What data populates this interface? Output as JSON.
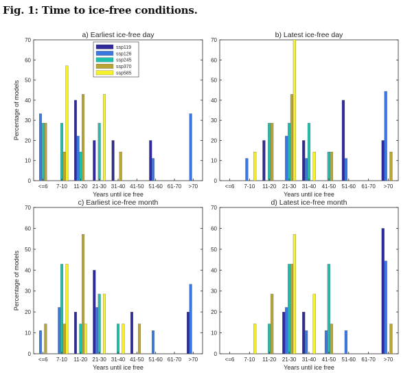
{
  "figure_title": "Fig. 1: Time to ice-free conditions.",
  "legend": [
    {
      "name": "ssp119",
      "color": "#2e2a9a"
    },
    {
      "name": "ssp126",
      "color": "#3a78e0"
    },
    {
      "name": "ssp245",
      "color": "#1fbfab"
    },
    {
      "name": "ssp370",
      "color": "#b9a533"
    },
    {
      "name": "ssp585",
      "color": "#f4f02e"
    }
  ],
  "chart_data": [
    {
      "type": "bar",
      "title": "a) Earliest ice-free day",
      "xlabel": "Years until ice free",
      "ylabel": "Percentage of models",
      "ylim": [
        0,
        70
      ],
      "yticks": [
        "0",
        "10",
        "20",
        "30",
        "40",
        "50",
        "60",
        "70"
      ],
      "categories": [
        "<=6",
        "7-10",
        "11-20",
        "21-30",
        "31-40",
        "41-50",
        "51-60",
        "61-70",
        ">70"
      ],
      "series": [
        {
          "name": "ssp119",
          "values": [
            0,
            0,
            40,
            20,
            20,
            0,
            20,
            0,
            0
          ]
        },
        {
          "name": "ssp126",
          "values": [
            33.3,
            0,
            22.2,
            0,
            0,
            0,
            11.1,
            0,
            33.3
          ]
        },
        {
          "name": "ssp245",
          "values": [
            28.6,
            28.6,
            14.3,
            28.6,
            0,
            0,
            0,
            0,
            0
          ]
        },
        {
          "name": "ssp370",
          "values": [
            28.6,
            14.3,
            42.9,
            0,
            14.3,
            0,
            0,
            0,
            0
          ]
        },
        {
          "name": "ssp585",
          "values": [
            0,
            57.1,
            0,
            42.9,
            0,
            0,
            0,
            0,
            0
          ]
        }
      ]
    },
    {
      "type": "bar",
      "title": "b) Latest ice-free day",
      "xlabel": "Years until ice free",
      "ylabel": "",
      "ylim": [
        0,
        70
      ],
      "yticks": [
        "0",
        "10",
        "20",
        "30",
        "40",
        "50",
        "60",
        "70"
      ],
      "categories": [
        "<=6",
        "7-10",
        "11-20",
        "21-30",
        "31-40",
        "41-50",
        "51-60",
        "61-70",
        ">70"
      ],
      "series": [
        {
          "name": "ssp119",
          "values": [
            0,
            0,
            20,
            0,
            20,
            0,
            40,
            0,
            20
          ]
        },
        {
          "name": "ssp126",
          "values": [
            0,
            11.1,
            0,
            22.2,
            11.1,
            0,
            11.1,
            0,
            44.4
          ]
        },
        {
          "name": "ssp245",
          "values": [
            0,
            0,
            28.6,
            28.6,
            28.6,
            14.3,
            0,
            0,
            0
          ]
        },
        {
          "name": "ssp370",
          "values": [
            0,
            0,
            28.6,
            42.9,
            0,
            14.3,
            0,
            0,
            14.3
          ]
        },
        {
          "name": "ssp585",
          "values": [
            0,
            14.3,
            0,
            71.4,
            14.3,
            0,
            0,
            0,
            0
          ]
        }
      ]
    },
    {
      "type": "bar",
      "title": "c) Earliest ice-free month",
      "xlabel": "Years until ice free",
      "ylabel": "Percentage of models",
      "ylim": [
        0,
        70
      ],
      "yticks": [
        "0",
        "10",
        "20",
        "30",
        "40",
        "50",
        "60",
        "70"
      ],
      "categories": [
        "<=6",
        "7-10",
        "11-20",
        "21-30",
        "31-40",
        "41-50",
        "51-60",
        "61-70",
        ">70"
      ],
      "series": [
        {
          "name": "ssp119",
          "values": [
            0,
            0,
            20,
            40,
            0,
            20,
            0,
            0,
            20
          ]
        },
        {
          "name": "ssp126",
          "values": [
            11.1,
            22.2,
            0,
            22.2,
            0,
            0,
            11.1,
            0,
            33.3
          ]
        },
        {
          "name": "ssp245",
          "values": [
            0,
            42.9,
            14.3,
            28.6,
            14.3,
            0,
            0,
            0,
            0
          ]
        },
        {
          "name": "ssp370",
          "values": [
            14.3,
            14.3,
            57.1,
            0,
            0,
            14.3,
            0,
            0,
            0
          ]
        },
        {
          "name": "ssp585",
          "values": [
            0,
            42.9,
            14.3,
            28.6,
            14.3,
            0,
            0,
            0,
            0
          ]
        }
      ]
    },
    {
      "type": "bar",
      "title": "d) Latest ice-free month",
      "xlabel": "Years until ice free",
      "ylabel": "",
      "ylim": [
        0,
        70
      ],
      "yticks": [
        "0",
        "10",
        "20",
        "30",
        "40",
        "50",
        "60",
        "70"
      ],
      "categories": [
        "<=6",
        "7-10",
        "11-20",
        "21-30",
        "31-40",
        "41-50",
        "51-60",
        "61-70",
        ">70"
      ],
      "series": [
        {
          "name": "ssp119",
          "values": [
            0,
            0,
            0,
            20,
            20,
            0,
            0,
            0,
            60
          ]
        },
        {
          "name": "ssp126",
          "values": [
            0,
            0,
            0,
            22.2,
            11.1,
            11.1,
            11.1,
            0,
            44.4
          ]
        },
        {
          "name": "ssp245",
          "values": [
            0,
            0,
            14.3,
            42.9,
            0,
            42.9,
            0,
            0,
            0
          ]
        },
        {
          "name": "ssp370",
          "values": [
            0,
            0,
            28.6,
            42.9,
            0,
            14.3,
            0,
            0,
            14.3
          ]
        },
        {
          "name": "ssp585",
          "values": [
            0,
            14.3,
            0,
            57.1,
            28.6,
            0,
            0,
            0,
            0
          ]
        }
      ]
    }
  ]
}
